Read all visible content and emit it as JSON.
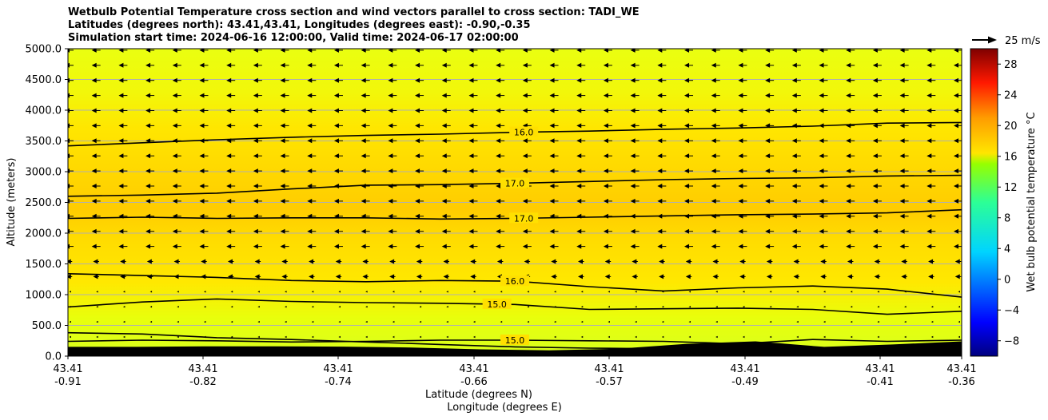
{
  "chart_data": {
    "type": "contourf_cross_section",
    "title_lines": [
      "Wetbulb Potential Temperature cross section and wind vectors parallel to cross section: TADI_WE",
      "Latitudes (degrees north): 43.41,43.41, Longitudes (degrees east): -0.90,-0.35",
      "Simulation start time: 2024-06-16 12:00:00, Valid time: 2024-06-17 02:00:00"
    ],
    "ylabel": "Altitude (meters)",
    "xlabel_lines": [
      "Latitude (degrees N)",
      "Longitude (degrees E)"
    ],
    "ylim": [
      0,
      5000
    ],
    "y_ticks": [
      "0.0",
      "500.0",
      "1000.0",
      "1500.0",
      "2000.0",
      "2500.0",
      "3000.0",
      "3500.0",
      "4000.0",
      "4500.0",
      "5000.0"
    ],
    "x_ticks": [
      {
        "lat": "43.41",
        "lon": "-0.91"
      },
      {
        "lat": "43.41",
        "lon": "-0.82"
      },
      {
        "lat": "43.41",
        "lon": "-0.74"
      },
      {
        "lat": "43.41",
        "lon": "-0.66"
      },
      {
        "lat": "43.41",
        "lon": "-0.57"
      },
      {
        "lat": "43.41",
        "lon": "-0.49"
      },
      {
        "lat": "43.41",
        "lon": "-0.41"
      },
      {
        "lat": "43.41",
        "lon": "-0.36"
      }
    ],
    "grid": "horizontal",
    "colorbar": {
      "label": "Wet bulb potential temperature $^\\circ$C",
      "label_display": "Wet bulb potential temperature °C",
      "range": [
        -10,
        30
      ],
      "ticks": [
        "28",
        "24",
        "20",
        "16",
        "12",
        "8",
        "4",
        "0",
        "−4",
        "−8"
      ]
    },
    "quiver_key": {
      "label": "25 m/s",
      "value": 25
    },
    "contours": [
      {
        "level": 16.0,
        "label": "16.0",
        "altitudes": [
          3420,
          3470,
          3520,
          3560,
          3590,
          3610,
          3640,
          3660,
          3690,
          3710,
          3740,
          3790,
          3800
        ]
      },
      {
        "level": 17.0,
        "label": "17.0",
        "altitudes": [
          2600,
          2620,
          2650,
          2720,
          2780,
          2790,
          2810,
          2840,
          2870,
          2890,
          2900,
          2930,
          2940
        ]
      },
      {
        "level": 17.0,
        "label": "17.0",
        "altitudes": [
          2240,
          2260,
          2240,
          2250,
          2250,
          2230,
          2240,
          2260,
          2280,
          2300,
          2310,
          2330,
          2380
        ]
      },
      {
        "level": 16.0,
        "label": "16.0",
        "altitudes": [
          1340,
          1310,
          1280,
          1230,
          1210,
          1230,
          1220,
          1130,
          1060,
          1110,
          1140,
          1090,
          960
        ]
      },
      {
        "level": 15.0,
        "label": "15.0",
        "altitudes": [
          800,
          880,
          930,
          890,
          870,
          860,
          840,
          760,
          770,
          780,
          760,
          680,
          730
        ]
      },
      {
        "level": 15.0,
        "label": "15.0",
        "altitudes": [
          240,
          260,
          250,
          230,
          240,
          260,
          260,
          250,
          240,
          200,
          270,
          240,
          260
        ]
      },
      {
        "level": 15.0,
        "label": "15.0",
        "altitudes": [
          380,
          360,
          300,
          270,
          230,
          190,
          150,
          130,
          120,
          140,
          130,
          110,
          120
        ]
      }
    ],
    "terrain_altitudes": [
      150,
      150,
      160,
      160,
      155,
      140,
      110,
      95,
      120,
      200,
      240,
      150,
      190,
      240
    ]
  }
}
